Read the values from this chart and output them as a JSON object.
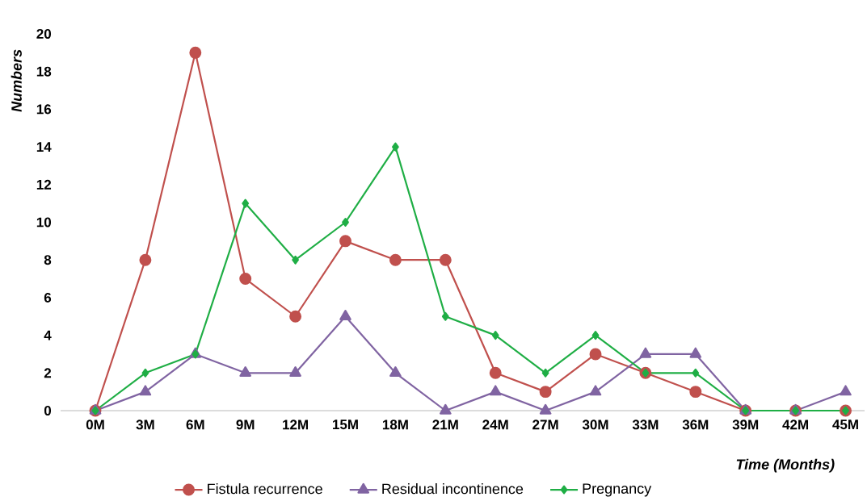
{
  "chart_data": {
    "type": "line",
    "xlabel": "Time (Months)",
    "ylabel": "Numbers",
    "categories": [
      "0M",
      "3M",
      "6M",
      "9M",
      "12M",
      "15M",
      "18M",
      "21M",
      "24M",
      "27M",
      "30M",
      "33M",
      "36M",
      "39M",
      "42M",
      "45M"
    ],
    "series": [
      {
        "name": "Fistula recurrence",
        "color": "#c0504d",
        "marker": "circle",
        "values": [
          0,
          8,
          19,
          7,
          5,
          9,
          8,
          8,
          2,
          1,
          3,
          2,
          1,
          0,
          0,
          0
        ]
      },
      {
        "name": "Residual incontinence",
        "color": "#8064a2",
        "marker": "triangle",
        "values": [
          0,
          1,
          3,
          2,
          2,
          5,
          2,
          0,
          1,
          0,
          1,
          3,
          3,
          0,
          0,
          1
        ]
      },
      {
        "name": "Pregnancy",
        "color": "#1fae45",
        "marker": "diamond",
        "values": [
          0,
          2,
          3,
          11,
          8,
          10,
          14,
          5,
          4,
          2,
          4,
          2,
          2,
          0,
          0,
          0
        ]
      }
    ],
    "ylim": [
      0,
      20
    ],
    "yticks": [
      0,
      2,
      4,
      6,
      8,
      10,
      12,
      14,
      16,
      18,
      20
    ],
    "legend": "bottom",
    "line_style": "solid"
  }
}
